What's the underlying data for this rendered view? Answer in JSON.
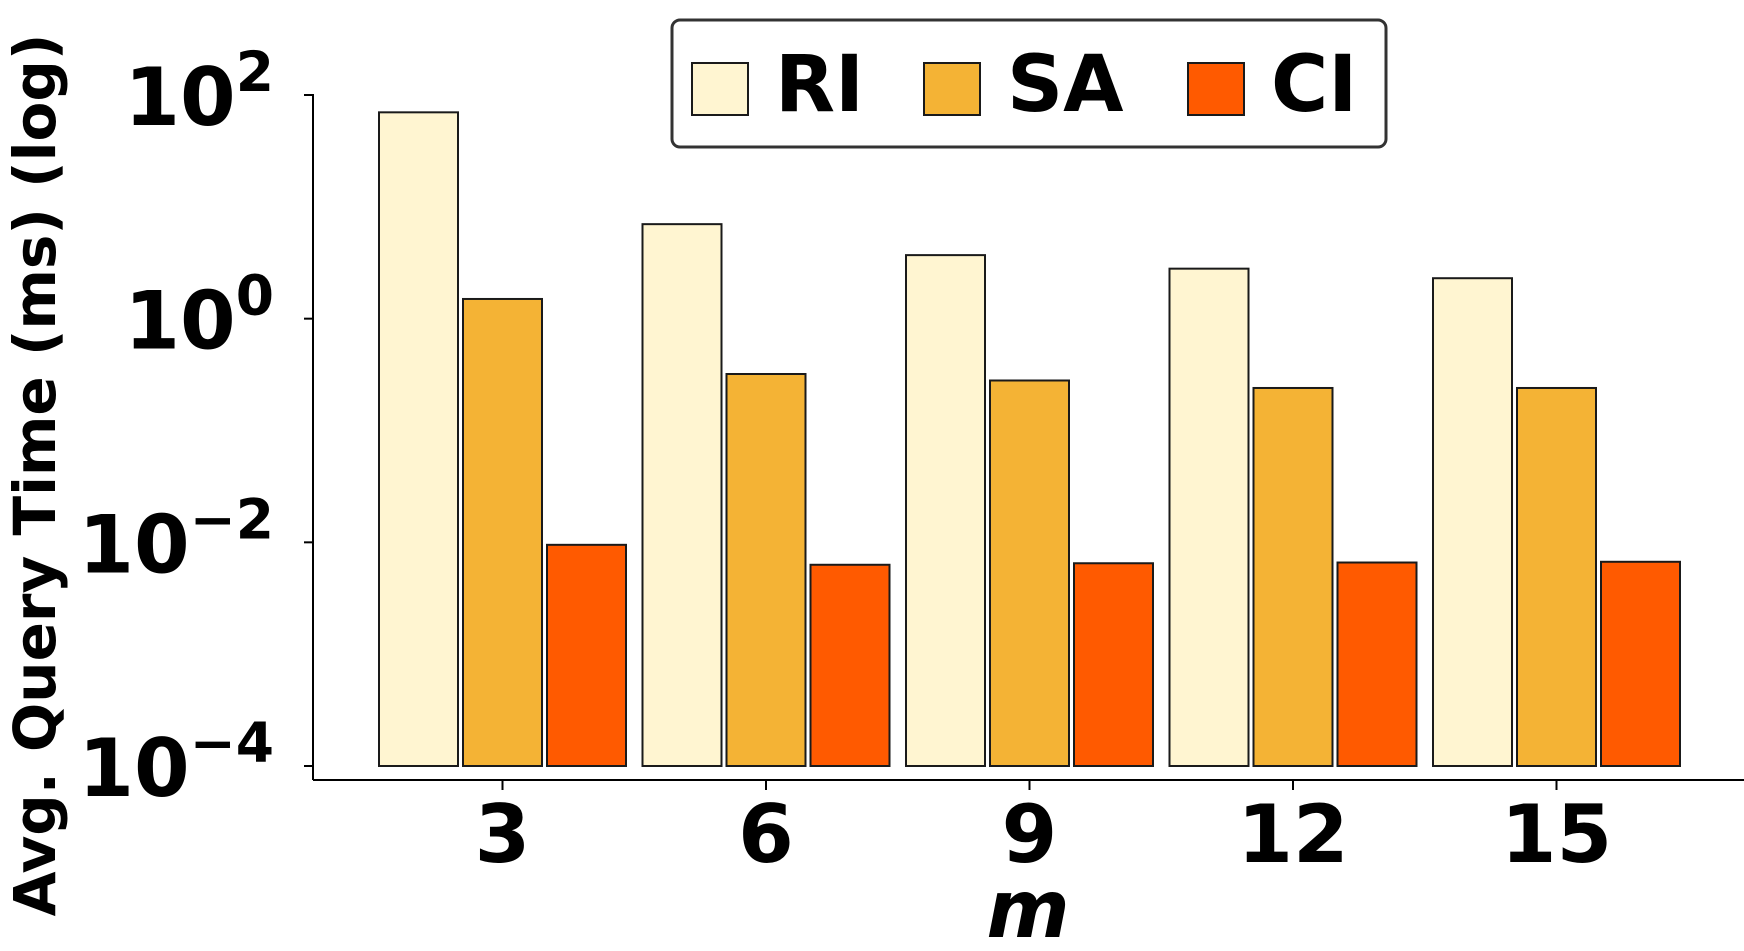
{
  "chart_data": {
    "type": "bar",
    "categories": [
      "3",
      "6",
      "9",
      "12",
      "15"
    ],
    "series": [
      {
        "name": "RI",
        "color": "#FFF5D1",
        "values": [
          70.0,
          7.0,
          3.7,
          2.8,
          2.3
        ]
      },
      {
        "name": "SA",
        "color": "#F4B335",
        "values": [
          1.5,
          0.32,
          0.28,
          0.24,
          0.24
        ]
      },
      {
        "name": "CI",
        "color": "#FF5A00",
        "values": [
          0.0095,
          0.0063,
          0.0065,
          0.0066,
          0.0067
        ]
      }
    ],
    "xlabel": "m",
    "ylabel": "Avg. Query Time (ms) (log)",
    "yscale": "log",
    "ylim": [
      0.0001,
      100
    ],
    "yticks": [
      {
        "value": 100,
        "base": "10",
        "exp": "2"
      },
      {
        "value": 1,
        "base": "10",
        "exp": "0"
      },
      {
        "value": 0.01,
        "base": "10",
        "exp": "−2"
      },
      {
        "value": 0.0001,
        "base": "10",
        "exp": "−4"
      }
    ],
    "grid": false,
    "legend_position": "top-center",
    "bar_edge_color": "#1a1a1a"
  }
}
